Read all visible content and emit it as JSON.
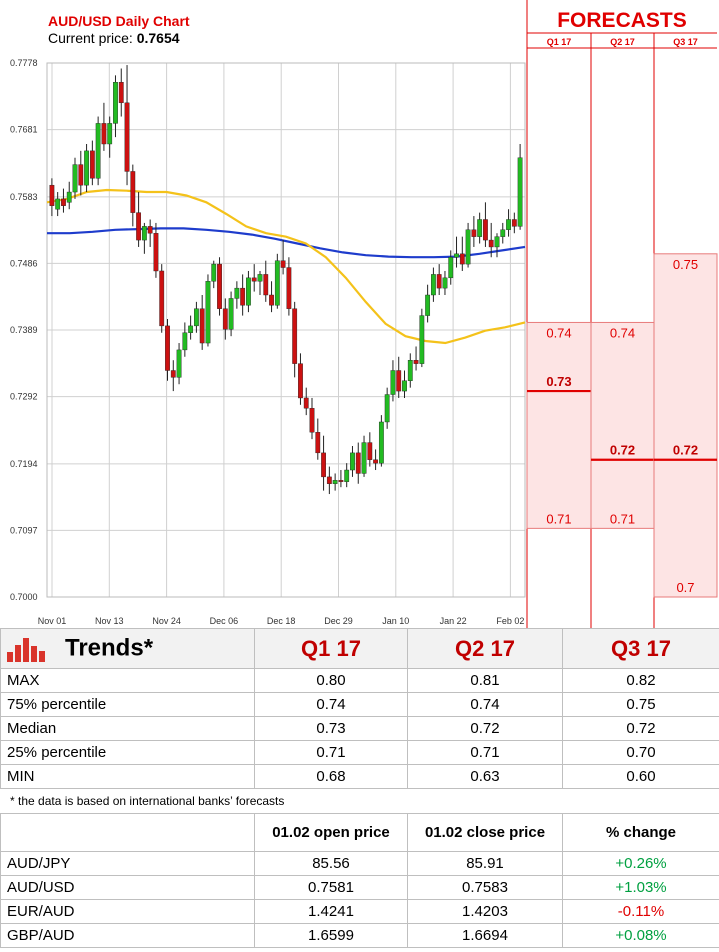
{
  "chart_data": {
    "type": "candlestick",
    "title": "AUD/USD Daily Chart",
    "current_price_label": "Current price:",
    "current_price": "0.7654",
    "ylim": [
      0.7,
      0.7778
    ],
    "y_ticks": [
      "0.7778",
      "0.7681",
      "0.7583",
      "0.7486",
      "0.7389",
      "0.7292",
      "0.7194",
      "0.7097",
      "0.7000"
    ],
    "x_ticks": [
      "Nov 01",
      "Nov 13",
      "Nov 24",
      "Dec 06",
      "Dec 18",
      "Dec 29",
      "Jan 10",
      "Jan 22",
      "Feb 02"
    ],
    "candles": [
      [
        0.76,
        0.761,
        0.757,
        0.7555
      ],
      [
        0.7565,
        0.759,
        0.758,
        0.7555
      ],
      [
        0.758,
        0.7595,
        0.757,
        0.756
      ],
      [
        0.7575,
        0.7605,
        0.759,
        0.7565
      ],
      [
        0.759,
        0.764,
        0.763,
        0.758
      ],
      [
        0.763,
        0.765,
        0.76,
        0.7585
      ],
      [
        0.76,
        0.766,
        0.765,
        0.759
      ],
      [
        0.765,
        0.7665,
        0.761,
        0.76
      ],
      [
        0.761,
        0.77,
        0.769,
        0.76
      ],
      [
        0.769,
        0.772,
        0.766,
        0.765
      ],
      [
        0.766,
        0.77,
        0.769,
        0.764
      ],
      [
        0.769,
        0.776,
        0.775,
        0.767
      ],
      [
        0.775,
        0.777,
        0.772,
        0.77
      ],
      [
        0.772,
        0.7775,
        0.762,
        0.76
      ],
      [
        0.762,
        0.763,
        0.756,
        0.754
      ],
      [
        0.756,
        0.759,
        0.752,
        0.751
      ],
      [
        0.752,
        0.7545,
        0.754,
        0.75
      ],
      [
        0.754,
        0.755,
        0.753,
        0.751
      ],
      [
        0.753,
        0.7545,
        0.7475,
        0.7465
      ],
      [
        0.7475,
        0.7485,
        0.7395,
        0.7385
      ],
      [
        0.7395,
        0.7405,
        0.733,
        0.7315
      ],
      [
        0.733,
        0.7345,
        0.732,
        0.73
      ],
      [
        0.732,
        0.737,
        0.736,
        0.731
      ],
      [
        0.736,
        0.74,
        0.7385,
        0.735
      ],
      [
        0.7385,
        0.741,
        0.7395,
        0.7375
      ],
      [
        0.7395,
        0.743,
        0.742,
        0.7385
      ],
      [
        0.742,
        0.744,
        0.737,
        0.736
      ],
      [
        0.737,
        0.747,
        0.746,
        0.7365
      ],
      [
        0.746,
        0.749,
        0.7485,
        0.745
      ],
      [
        0.7485,
        0.7495,
        0.742,
        0.741
      ],
      [
        0.742,
        0.7435,
        0.739,
        0.7375
      ],
      [
        0.739,
        0.7445,
        0.7435,
        0.738
      ],
      [
        0.7435,
        0.746,
        0.745,
        0.742
      ],
      [
        0.745,
        0.747,
        0.7425,
        0.741
      ],
      [
        0.7425,
        0.7475,
        0.7465,
        0.7415
      ],
      [
        0.7465,
        0.7485,
        0.746,
        0.7445
      ],
      [
        0.746,
        0.7475,
        0.747,
        0.744
      ],
      [
        0.747,
        0.749,
        0.744,
        0.743
      ],
      [
        0.744,
        0.746,
        0.7425,
        0.7415
      ],
      [
        0.7425,
        0.75,
        0.749,
        0.742
      ],
      [
        0.749,
        0.752,
        0.748,
        0.747
      ],
      [
        0.748,
        0.7495,
        0.742,
        0.741
      ],
      [
        0.742,
        0.743,
        0.734,
        0.732
      ],
      [
        0.734,
        0.7355,
        0.729,
        0.728
      ],
      [
        0.729,
        0.7305,
        0.7275,
        0.7265
      ],
      [
        0.7275,
        0.729,
        0.724,
        0.723
      ],
      [
        0.724,
        0.726,
        0.721,
        0.72
      ],
      [
        0.721,
        0.7235,
        0.7175,
        0.7155
      ],
      [
        0.7175,
        0.719,
        0.7165,
        0.715
      ],
      [
        0.7165,
        0.718,
        0.717,
        0.7155
      ],
      [
        0.717,
        0.7185,
        0.7168,
        0.716
      ],
      [
        0.7168,
        0.7195,
        0.7185,
        0.716
      ],
      [
        0.7185,
        0.722,
        0.721,
        0.7175
      ],
      [
        0.721,
        0.7225,
        0.718,
        0.7165
      ],
      [
        0.718,
        0.7235,
        0.7225,
        0.7175
      ],
      [
        0.7225,
        0.724,
        0.72,
        0.719
      ],
      [
        0.72,
        0.7215,
        0.7195,
        0.7185
      ],
      [
        0.7195,
        0.7265,
        0.7255,
        0.719
      ],
      [
        0.7255,
        0.7305,
        0.7295,
        0.7245
      ],
      [
        0.7295,
        0.7345,
        0.733,
        0.7285
      ],
      [
        0.733,
        0.735,
        0.73,
        0.729
      ],
      [
        0.73,
        0.733,
        0.7315,
        0.729
      ],
      [
        0.7315,
        0.7355,
        0.7345,
        0.7305
      ],
      [
        0.7345,
        0.7365,
        0.734,
        0.733
      ],
      [
        0.734,
        0.742,
        0.741,
        0.7335
      ],
      [
        0.741,
        0.7455,
        0.744,
        0.74
      ],
      [
        0.744,
        0.748,
        0.747,
        0.743
      ],
      [
        0.747,
        0.7485,
        0.745,
        0.744
      ],
      [
        0.745,
        0.7475,
        0.7465,
        0.744
      ],
      [
        0.7465,
        0.7505,
        0.7495,
        0.7455
      ],
      [
        0.7495,
        0.7525,
        0.75,
        0.748
      ],
      [
        0.75,
        0.7525,
        0.7485,
        0.7475
      ],
      [
        0.7485,
        0.7545,
        0.7535,
        0.748
      ],
      [
        0.7535,
        0.7555,
        0.7525,
        0.751
      ],
      [
        0.7525,
        0.756,
        0.755,
        0.7515
      ],
      [
        0.755,
        0.7575,
        0.752,
        0.751
      ],
      [
        0.752,
        0.7545,
        0.751,
        0.7495
      ],
      [
        0.751,
        0.753,
        0.7525,
        0.7495
      ],
      [
        0.7525,
        0.7545,
        0.7535,
        0.7515
      ],
      [
        0.7535,
        0.7565,
        0.755,
        0.7525
      ],
      [
        0.755,
        0.756,
        0.754,
        0.753
      ],
      [
        0.754,
        0.766,
        0.764,
        0.7535
      ]
    ],
    "ma_slow": [
      0.753,
      0.753,
      0.7532,
      0.7535,
      0.7536,
      0.7537,
      0.7537,
      0.7535,
      0.7532,
      0.7528,
      0.7522,
      0.7515,
      0.7508,
      0.7502,
      0.7498,
      0.7496,
      0.7495,
      0.7495,
      0.7496,
      0.75,
      0.7505,
      0.751
    ],
    "ma_fast": [
      0.7575,
      0.758,
      0.759,
      0.7593,
      0.7592,
      0.759,
      0.759,
      0.7585,
      0.7575,
      0.7558,
      0.754,
      0.753,
      0.7525,
      0.7515,
      0.7495,
      0.7465,
      0.743,
      0.7398,
      0.738,
      0.7373,
      0.737,
      0.7378,
      0.7388,
      0.7393,
      0.74
    ],
    "forecast_header": "FORECASTS",
    "forecast_quarters": [
      "Q1 17",
      "Q2 17",
      "Q3 17"
    ],
    "forecast_columns": [
      {
        "min": 0.71,
        "median": 0.73,
        "max": 0.74,
        "labels": {
          "min": "0.71",
          "median": "0.73",
          "max": "0.74"
        }
      },
      {
        "min": 0.71,
        "median": 0.72,
        "max": 0.74,
        "labels": {
          "min": "0.71",
          "median": "0.72",
          "max": "0.74"
        }
      },
      {
        "min": 0.7,
        "median": 0.72,
        "max": 0.75,
        "labels": {
          "min": "0.7",
          "median": "0.72",
          "max": "0.75"
        }
      }
    ],
    "colors": {
      "bull": "#22bb22",
      "bear": "#cc1111",
      "ma_slow": "#1e3ccc",
      "ma_fast": "#f4c21a",
      "forecast_fill": "#fde4e4",
      "forecast_line": "#e00000"
    }
  },
  "trends": {
    "title": "Trends*",
    "quarters": [
      "Q1 17",
      "Q2 17",
      "Q3 17"
    ],
    "rows": [
      {
        "label": "MAX",
        "values": [
          "0.80",
          "0.81",
          "0.82"
        ]
      },
      {
        "label": "75% percentile",
        "values": [
          "0.74",
          "0.74",
          "0.75"
        ]
      },
      {
        "label": "Median",
        "values": [
          "0.73",
          "0.72",
          "0.72"
        ]
      },
      {
        "label": "25% percentile",
        "values": [
          "0.71",
          "0.71",
          "0.70"
        ]
      },
      {
        "label": "MIN",
        "values": [
          "0.68",
          "0.63",
          "0.60"
        ]
      }
    ],
    "footnote": "* the data is based on international banks’ forecasts"
  },
  "fx": {
    "headers": [
      "01.02 open price",
      "01.02 close price",
      "% change"
    ],
    "rows": [
      {
        "pair": "AUD/JPY",
        "open": "85.56",
        "close": "85.91",
        "change": "+0.26%",
        "dir": "pos"
      },
      {
        "pair": "AUD/USD",
        "open": "0.7581",
        "close": "0.7583",
        "change": "+1.03%",
        "dir": "pos"
      },
      {
        "pair": "EUR/AUD",
        "open": "1.4241",
        "close": "1.4203",
        "change": "-0.11%",
        "dir": "neg"
      },
      {
        "pair": "GBP/AUD",
        "open": "1.6599",
        "close": "1.6694",
        "change": "+0.08%",
        "dir": "pos"
      }
    ]
  }
}
